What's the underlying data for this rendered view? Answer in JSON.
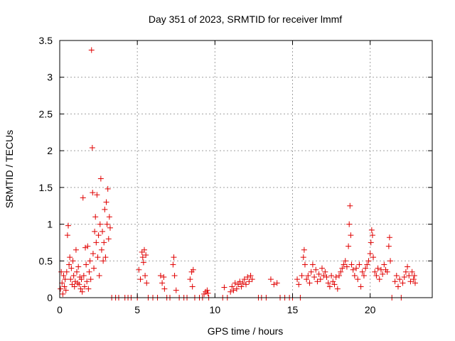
{
  "chart_data": {
    "type": "scatter",
    "title": "Day 351 of 2023, SRMTID for receiver lmmf",
    "xlabel": "GPS time / hours",
    "ylabel": "SRMTID / TECUs",
    "xlim": [
      0,
      24
    ],
    "ylim": [
      0,
      3.5
    ],
    "xticks": [
      0,
      5,
      10,
      15,
      20
    ],
    "xtick_labels": [
      "0",
      "5",
      "10",
      "15",
      "20"
    ],
    "yticks": [
      0,
      0.5,
      1,
      1.5,
      2,
      2.5,
      3,
      3.5
    ],
    "ytick_labels": [
      "0",
      "0.5",
      "1",
      "1.5",
      "2",
      "2.5",
      "3",
      "3.5"
    ],
    "grid": true,
    "marker": "plus",
    "color": "#e00000",
    "series": [
      {
        "name": "SRMTID",
        "points": [
          [
            0.05,
            0.12
          ],
          [
            0.1,
            0.35
          ],
          [
            0.15,
            0.2
          ],
          [
            0.2,
            0.05
          ],
          [
            0.25,
            0.3
          ],
          [
            0.3,
            0.15
          ],
          [
            0.35,
            0.25
          ],
          [
            0.4,
            0.1
          ],
          [
            0.45,
            0.35
          ],
          [
            0.5,
            0.85
          ],
          [
            0.55,
            0.98
          ],
          [
            0.6,
            0.45
          ],
          [
            0.65,
            0.55
          ],
          [
            0.7,
            0.25
          ],
          [
            0.75,
            0.4
          ],
          [
            0.8,
            0.18
          ],
          [
            0.85,
            0.5
          ],
          [
            0.9,
            0.3
          ],
          [
            0.95,
            0.15
          ],
          [
            1.0,
            0.22
          ],
          [
            1.05,
            0.65
          ],
          [
            1.1,
            0.35
          ],
          [
            1.15,
            0.2
          ],
          [
            1.2,
            0.42
          ],
          [
            1.25,
            0.18
          ],
          [
            1.3,
            0.28
          ],
          [
            1.35,
            0.12
          ],
          [
            1.4,
            0.25
          ],
          [
            1.45,
            0.08
          ],
          [
            1.5,
            1.36
          ],
          [
            1.55,
            0.3
          ],
          [
            1.6,
            0.15
          ],
          [
            1.65,
            0.68
          ],
          [
            1.7,
            0.45
          ],
          [
            1.75,
            0.22
          ],
          [
            1.8,
            0.7
          ],
          [
            1.85,
            0.12
          ],
          [
            1.9,
            0.35
          ],
          [
            1.95,
            0.5
          ],
          [
            2.0,
            0.25
          ],
          [
            2.05,
            3.37
          ],
          [
            2.1,
            2.04
          ],
          [
            2.12,
            1.43
          ],
          [
            2.15,
            0.6
          ],
          [
            2.2,
            0.4
          ],
          [
            2.25,
            0.9
          ],
          [
            2.3,
            1.1
          ],
          [
            2.35,
            0.75
          ],
          [
            2.4,
            1.4
          ],
          [
            2.45,
            0.55
          ],
          [
            2.5,
            0.85
          ],
          [
            2.55,
            0.3
          ],
          [
            2.6,
            1.0
          ],
          [
            2.65,
            1.62
          ],
          [
            2.7,
            0.65
          ],
          [
            2.75,
            0.9
          ],
          [
            2.8,
            0.5
          ],
          [
            2.85,
            0.75
          ],
          [
            2.9,
            1.2
          ],
          [
            2.95,
            0.55
          ],
          [
            3.0,
            1.3
          ],
          [
            3.05,
            1.0
          ],
          [
            3.1,
            1.48
          ],
          [
            3.15,
            0.8
          ],
          [
            3.2,
            1.1
          ],
          [
            3.25,
            0.95
          ],
          [
            3.35,
            0.0
          ],
          [
            3.6,
            0.0
          ],
          [
            3.8,
            0.0
          ],
          [
            4.2,
            0.0
          ],
          [
            4.4,
            0.0
          ],
          [
            4.6,
            0.0
          ],
          [
            5.0,
            0.0
          ],
          [
            5.1,
            0.38
          ],
          [
            5.2,
            0.25
          ],
          [
            5.3,
            0.62
          ],
          [
            5.35,
            0.55
          ],
          [
            5.4,
            0.48
          ],
          [
            5.45,
            0.65
          ],
          [
            5.5,
            0.3
          ],
          [
            5.55,
            0.58
          ],
          [
            5.6,
            0.2
          ],
          [
            5.7,
            0.0
          ],
          [
            6.0,
            0.0
          ],
          [
            6.3,
            0.0
          ],
          [
            6.5,
            0.3
          ],
          [
            6.6,
            0.2
          ],
          [
            6.7,
            0.28
          ],
          [
            6.75,
            0.12
          ],
          [
            6.9,
            0.0
          ],
          [
            7.1,
            0.0
          ],
          [
            7.3,
            0.45
          ],
          [
            7.35,
            0.55
          ],
          [
            7.4,
            0.3
          ],
          [
            7.5,
            0.1
          ],
          [
            7.7,
            0.0
          ],
          [
            8.0,
            0.0
          ],
          [
            8.2,
            0.0
          ],
          [
            8.4,
            0.25
          ],
          [
            8.5,
            0.35
          ],
          [
            8.55,
            0.15
          ],
          [
            8.6,
            0.38
          ],
          [
            8.7,
            0.0
          ],
          [
            9.0,
            0.0
          ],
          [
            9.2,
            0.0
          ],
          [
            9.3,
            0.05
          ],
          [
            9.4,
            0.08
          ],
          [
            9.5,
            0.1
          ],
          [
            9.55,
            0.06
          ],
          [
            9.6,
            0.0
          ],
          [
            10.5,
            0.0
          ],
          [
            10.6,
            0.14
          ],
          [
            10.8,
            0.0
          ],
          [
            11.0,
            0.08
          ],
          [
            11.1,
            0.15
          ],
          [
            11.2,
            0.1
          ],
          [
            11.3,
            0.2
          ],
          [
            11.4,
            0.12
          ],
          [
            11.5,
            0.18
          ],
          [
            11.6,
            0.22
          ],
          [
            11.7,
            0.15
          ],
          [
            11.8,
            0.2
          ],
          [
            11.9,
            0.25
          ],
          [
            12.0,
            0.18
          ],
          [
            12.1,
            0.28
          ],
          [
            12.2,
            0.22
          ],
          [
            12.3,
            0.3
          ],
          [
            12.4,
            0.25
          ],
          [
            12.8,
            0.0
          ],
          [
            13.0,
            0.0
          ],
          [
            13.3,
            0.0
          ],
          [
            13.6,
            0.25
          ],
          [
            13.8,
            0.18
          ],
          [
            14.0,
            0.2
          ],
          [
            14.2,
            0.0
          ],
          [
            14.5,
            0.0
          ],
          [
            14.8,
            0.0
          ],
          [
            15.0,
            0.0
          ],
          [
            15.3,
            0.25
          ],
          [
            15.4,
            0.18
          ],
          [
            15.5,
            0.0
          ],
          [
            15.6,
            0.3
          ],
          [
            15.7,
            0.55
          ],
          [
            15.75,
            0.65
          ],
          [
            15.8,
            0.45
          ],
          [
            15.9,
            0.25
          ],
          [
            16.0,
            0.3
          ],
          [
            16.1,
            0.2
          ],
          [
            16.2,
            0.35
          ],
          [
            16.3,
            0.45
          ],
          [
            16.4,
            0.28
          ],
          [
            16.5,
            0.38
          ],
          [
            16.6,
            0.22
          ],
          [
            16.7,
            0.32
          ],
          [
            16.8,
            0.25
          ],
          [
            16.9,
            0.4
          ],
          [
            17.0,
            0.3
          ],
          [
            17.1,
            0.35
          ],
          [
            17.2,
            0.28
          ],
          [
            17.3,
            0.2
          ],
          [
            17.4,
            0.15
          ],
          [
            17.5,
            0.3
          ],
          [
            17.6,
            0.22
          ],
          [
            17.7,
            0.18
          ],
          [
            17.8,
            0.28
          ],
          [
            17.9,
            0.12
          ],
          [
            18.0,
            0.3
          ],
          [
            18.1,
            0.35
          ],
          [
            18.2,
            0.4
          ],
          [
            18.3,
            0.45
          ],
          [
            18.4,
            0.5
          ],
          [
            18.5,
            0.42
          ],
          [
            18.6,
            0.7
          ],
          [
            18.65,
            1.0
          ],
          [
            18.7,
            1.25
          ],
          [
            18.75,
            0.85
          ],
          [
            18.8,
            0.45
          ],
          [
            18.9,
            0.38
          ],
          [
            19.0,
            0.3
          ],
          [
            19.1,
            0.4
          ],
          [
            19.2,
            0.25
          ],
          [
            19.3,
            0.45
          ],
          [
            19.4,
            0.15
          ],
          [
            19.5,
            0.35
          ],
          [
            19.6,
            0.3
          ],
          [
            19.7,
            0.4
          ],
          [
            19.8,
            0.45
          ],
          [
            19.9,
            0.5
          ],
          [
            20.0,
            0.6
          ],
          [
            20.05,
            0.75
          ],
          [
            20.1,
            0.92
          ],
          [
            20.15,
            0.85
          ],
          [
            20.2,
            0.55
          ],
          [
            20.3,
            0.35
          ],
          [
            20.4,
            0.3
          ],
          [
            20.5,
            0.4
          ],
          [
            20.6,
            0.25
          ],
          [
            20.7,
            0.38
          ],
          [
            20.8,
            0.32
          ],
          [
            20.9,
            0.45
          ],
          [
            21.0,
            0.38
          ],
          [
            21.1,
            0.35
          ],
          [
            21.2,
            0.7
          ],
          [
            21.25,
            0.82
          ],
          [
            21.3,
            0.5
          ],
          [
            21.4,
            0.0
          ],
          [
            21.6,
            0.22
          ],
          [
            21.7,
            0.3
          ],
          [
            21.8,
            0.15
          ],
          [
            21.9,
            0.25
          ],
          [
            22.0,
            0.0
          ],
          [
            22.1,
            0.2
          ],
          [
            22.2,
            0.28
          ],
          [
            22.3,
            0.35
          ],
          [
            22.4,
            0.42
          ],
          [
            22.5,
            0.3
          ],
          [
            22.6,
            0.22
          ],
          [
            22.7,
            0.35
          ],
          [
            22.8,
            0.25
          ],
          [
            22.85,
            0.3
          ],
          [
            22.9,
            0.2
          ]
        ]
      }
    ]
  }
}
